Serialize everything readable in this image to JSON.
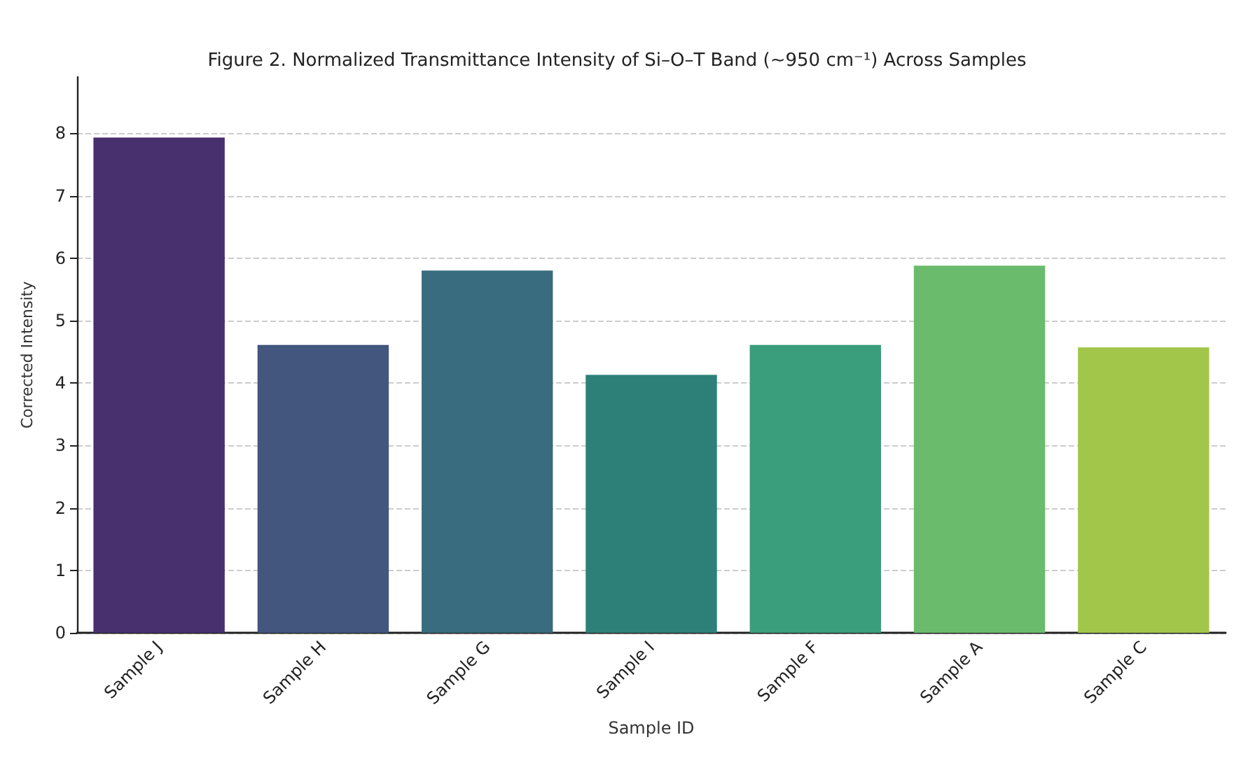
{
  "chart_data": {
    "type": "bar",
    "title": "Figure 2. Normalized Transmittance Intensity of Si–O–T Band (~950 cm⁻¹) Across Samples",
    "xlabel": "Sample ID",
    "ylabel": "Corrected Intensity",
    "categories": [
      "Sample J",
      "Sample H",
      "Sample G",
      "Sample I",
      "Sample F",
      "Sample A",
      "Sample C"
    ],
    "values": [
      7.93,
      4.61,
      5.8,
      4.13,
      4.61,
      5.88,
      4.57
    ],
    "colors": [
      "#482f6e",
      "#42567e",
      "#386c7e",
      "#2d8078",
      "#3a9d7b",
      "#6bbb6d",
      "#a2c64a"
    ],
    "ylim": [
      0,
      8.9
    ],
    "yticks": [
      0,
      1,
      2,
      3,
      4,
      5,
      6,
      7,
      8
    ],
    "grid": "y"
  }
}
